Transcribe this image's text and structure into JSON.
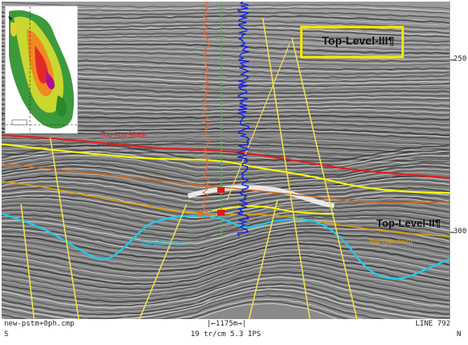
{
  "section": {
    "time_ticks": [
      "250",
      "300"
    ]
  },
  "labels": {
    "level_iii": "Top-Level-III¶",
    "level_ii": "Top-Level-II¶",
    "horizons": {
      "top_abu_madi": "Top Abu Madi",
      "top_salt_salem": "Top Salt Salem",
      "top_qawasim": "Top Qawasim"
    }
  },
  "footer": {
    "file": "new-pstm+0ph.cmp",
    "scale_bar": "1175m",
    "line": "LINE 792",
    "south": "S",
    "north": "N",
    "display_params": "19 tr/cm 5.3 IPS"
  },
  "colors": {
    "horizon_red": "#e02020",
    "horizon_yellow": "#ffff00",
    "horizon_orange": "#d06a1c",
    "horizon_gold": "#e0a000",
    "horizon_cyan": "#22c8e8",
    "fault_yellow": "#f0e04a",
    "log_blue": "#1020e0",
    "log_orange": "#e86a3a",
    "log_green": "#3fbf3f"
  }
}
